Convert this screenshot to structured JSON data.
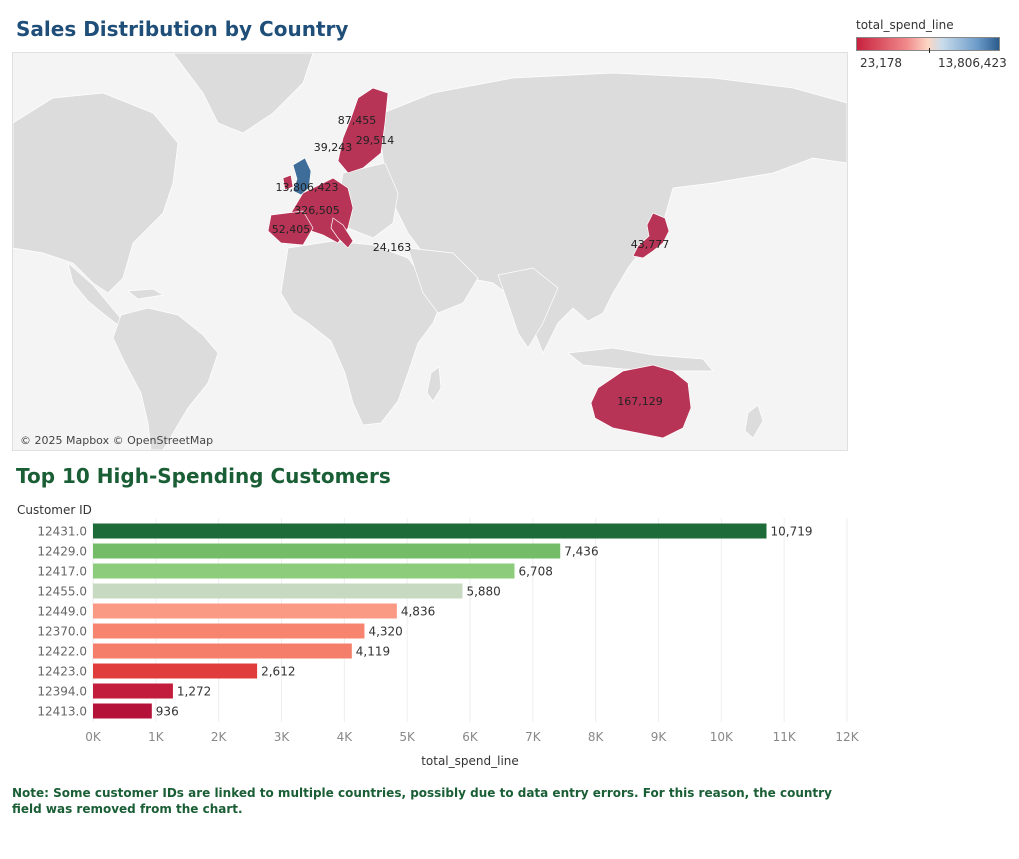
{
  "map_section": {
    "title": "Sales Distribution by Country",
    "legend": {
      "title": "total_spend_line",
      "min_label": "23,178",
      "max_label": "13,806,423",
      "colors": [
        "#c8213f",
        "#fcd6c4",
        "#2a5b8c"
      ]
    },
    "copyright": "© 2025 Mapbox © OpenStreetMap",
    "labels": [
      "87,455",
      "29,514",
      "39,243",
      "13,806,423",
      "326,505",
      "52,405",
      "24,163",
      "43,777",
      "167,129"
    ]
  },
  "bar_section": {
    "title": "Top 10 High-Spending Customers",
    "note": "Note: Some customer IDs are linked to multiple countries, possibly due to data entry errors. For this reason, the country field was removed from the chart."
  },
  "chart_data": {
    "type": "bar",
    "orientation": "horizontal",
    "title": "Top 10 High-Spending Customers",
    "ylabel": "Customer ID",
    "xlabel": "total_spend_line",
    "xlim": [
      0,
      12000
    ],
    "xticks": [
      "0K",
      "1K",
      "2K",
      "3K",
      "4K",
      "5K",
      "6K",
      "7K",
      "8K",
      "9K",
      "10K",
      "11K",
      "12K"
    ],
    "categories": [
      "12431.0",
      "12429.0",
      "12417.0",
      "12455.0",
      "12449.0",
      "12370.0",
      "12422.0",
      "12423.0",
      "12394.0",
      "12413.0"
    ],
    "values": [
      10719,
      7436,
      6708,
      5880,
      4836,
      4320,
      4119,
      2612,
      1272,
      936
    ],
    "value_labels": [
      "10,719",
      "7,436",
      "6,708",
      "5,880",
      "4,836",
      "4,320",
      "4,119",
      "2,612",
      "1,272",
      "936"
    ],
    "colors": [
      "#1e6b3a",
      "#74bc68",
      "#8ccc7a",
      "#c8d9c1",
      "#fb9a84",
      "#f7846f",
      "#f47e6a",
      "#e03c3c",
      "#c21d3c",
      "#b5123a"
    ],
    "grid": true
  }
}
